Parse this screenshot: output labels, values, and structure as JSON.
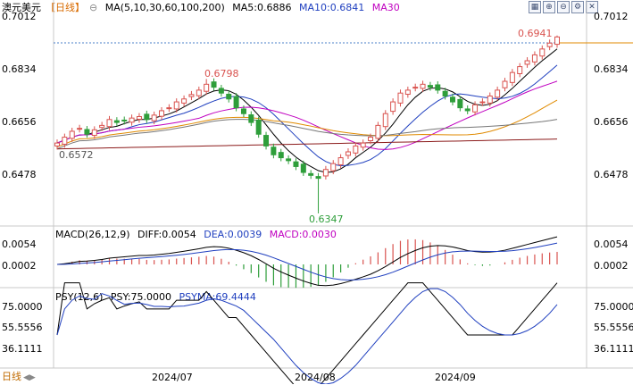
{
  "header": {
    "symbol": "澳元美元",
    "period_label": "【日线】",
    "ma_params": "MA(5,10,30,60,100,200)",
    "ma5": "MA5:0.6886",
    "ma10": "MA10:0.6841",
    "ma30": "MA30"
  },
  "toolbar": {
    "icons": [
      "grid-icon",
      "zoom-in-icon",
      "zoom-out-icon",
      "settings-icon",
      "close-icon"
    ]
  },
  "colors": {
    "up": "#d9534f",
    "down": "#2e9e3a",
    "ma5": "#000000",
    "ma10": "#1f3fbf",
    "ma30": "#c000c0",
    "ma60": "#e08a00",
    "ma100": "#777777",
    "ma200": "#8b1a1a",
    "current_price": "#e08a00"
  },
  "main_chart": {
    "y_ticks": [
      "0.7012",
      "0.6834",
      "0.6656",
      "0.6478"
    ],
    "y_range": [
      0.6322,
      0.7012
    ],
    "high_label": "0.6798",
    "low_label": "0.6347",
    "last_high_label": "0.6941",
    "left_label": "0.6572"
  },
  "macd_panel": {
    "title": "MACD(26,12,9)",
    "diff": "DIFF:0.0054",
    "dea": "DEA:0.0039",
    "macd": "MACD:0.0030",
    "y_ticks": [
      "0.0054",
      "0.0002"
    ]
  },
  "psy_panel": {
    "title": "PSY(12,6)",
    "psy": "PSY:75.0000",
    "psyma": "PSYMA:69.4444",
    "y_ticks": [
      "75.0000",
      "55.5556",
      "36.1111"
    ]
  },
  "x_labels": [
    "2024/07",
    "2024/08",
    "2024/09"
  ],
  "bottom_tab": "日线",
  "chart_data": {
    "type": "candlestick",
    "title": "澳元美元【日线】",
    "x_months": [
      "2024/07",
      "2024/08",
      "2024/09"
    ],
    "ylim": [
      0.6322,
      0.7012
    ],
    "ohlc_close": [
      0.658,
      0.66,
      0.662,
      0.663,
      0.661,
      0.6625,
      0.664,
      0.666,
      0.665,
      0.6655,
      0.6665,
      0.667,
      0.666,
      0.6675,
      0.669,
      0.67,
      0.672,
      0.673,
      0.6745,
      0.676,
      0.678,
      0.677,
      0.675,
      0.673,
      0.67,
      0.668,
      0.665,
      0.661,
      0.657,
      0.654,
      0.653,
      0.652,
      0.65,
      0.648,
      0.647,
      0.646,
      0.649,
      0.651,
      0.653,
      0.655,
      0.657,
      0.658,
      0.66,
      0.664,
      0.668,
      0.672,
      0.675,
      0.676,
      0.677,
      0.678,
      0.677,
      0.676,
      0.674,
      0.672,
      0.67,
      0.669,
      0.671,
      0.672,
      0.674,
      0.676,
      0.679,
      0.682,
      0.684,
      0.686,
      0.688,
      0.69,
      0.692,
      0.6941
    ],
    "key_levels": {
      "high_jul": 0.6798,
      "low_aug": 0.6347,
      "high_sep": 0.6941,
      "left": 0.6572
    },
    "macd": {
      "diff": 0.0054,
      "dea": 0.0039,
      "macd": 0.003
    },
    "psy": {
      "psy": 75.0,
      "psyma": 69.4444
    }
  }
}
